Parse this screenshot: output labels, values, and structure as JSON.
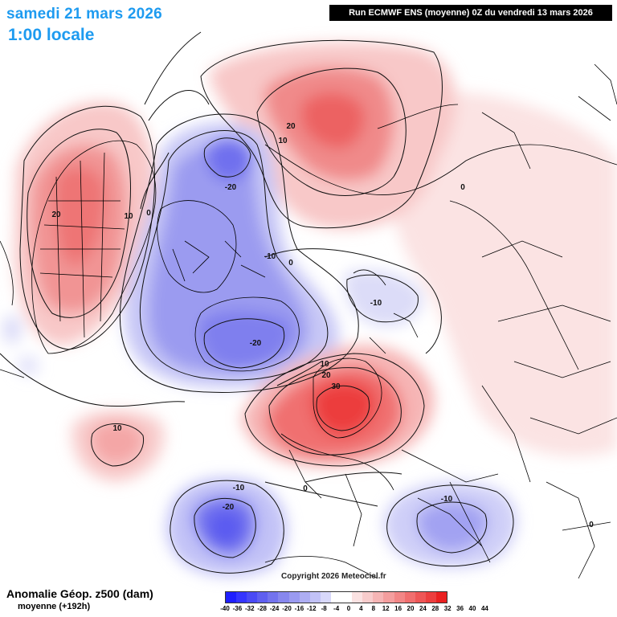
{
  "header": {
    "date": "samedi 21 mars 2026",
    "time": "1:00 locale",
    "run_info": "Run ECMWF ENS (moyenne) 0Z du vendredi 13 mars 2026"
  },
  "footer": {
    "copyright": "Copyright 2026 Meteociel.fr",
    "legend_title": "Anomalie Géop. z500 (dam)",
    "legend_subtitle": "moyenne   (+192h)"
  },
  "colorbar": {
    "ticks": [
      "-40",
      "-36",
      "-32",
      "-28",
      "-24",
      "-20",
      "-16",
      "-12",
      "-8",
      "-4",
      "0",
      "4",
      "8",
      "12",
      "16",
      "20",
      "24",
      "28",
      "32",
      "36",
      "40",
      "44"
    ],
    "colors": [
      "#1f1fff",
      "#3535ff",
      "#4a4af5",
      "#5f5ff0",
      "#7373ee",
      "#8787ee",
      "#9a9af0",
      "#aeaef3",
      "#c2c2f7",
      "#d8d8fa",
      "#ffffff",
      "#ffffff",
      "#fbe2e2",
      "#f8cccc",
      "#f6b5b5",
      "#f49e9e",
      "#f28686",
      "#f06e6e",
      "#ee5656",
      "#ec3e3e",
      "#ea2020"
    ]
  },
  "contour_labels": [
    {
      "text": "20",
      "region": "arctic-siberia"
    },
    {
      "text": "10",
      "region": "arctic-siberia"
    },
    {
      "text": "-20",
      "region": "canada-arctic"
    },
    {
      "text": "20",
      "region": "north-america-west"
    },
    {
      "text": "10",
      "region": "north-america-west"
    },
    {
      "text": "0",
      "region": "north-america-west"
    },
    {
      "text": "-10",
      "region": "greenland"
    },
    {
      "text": "0",
      "region": "greenland"
    },
    {
      "text": "-20",
      "region": "greenland"
    },
    {
      "text": "-10",
      "region": "barents"
    },
    {
      "text": "0",
      "region": "asia"
    },
    {
      "text": "10",
      "region": "scandinavia"
    },
    {
      "text": "20",
      "region": "scandinavia"
    },
    {
      "text": "30",
      "region": "scandinavia"
    },
    {
      "text": "10",
      "region": "atlantic-west"
    },
    {
      "text": "-10",
      "region": "atlantic-south"
    },
    {
      "text": "-20",
      "region": "atlantic-south"
    },
    {
      "text": "0",
      "region": "europe-south"
    },
    {
      "text": "-10",
      "region": "mediterranean"
    },
    {
      "text": "0",
      "region": "asia-south"
    }
  ]
}
